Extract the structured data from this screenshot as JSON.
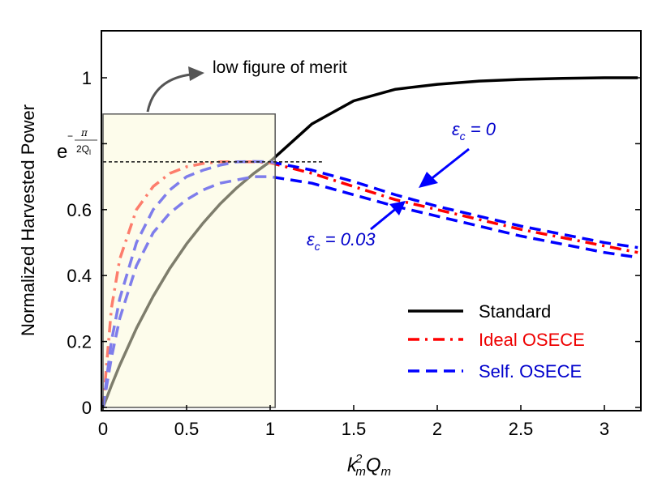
{
  "chart_data": {
    "type": "line",
    "xlabel": {
      "k": "k",
      "k_sub": "m",
      "k_sup": "2",
      "Q": "Q",
      "Q_sub": "m"
    },
    "ylabel": "Normalized Harvested Power",
    "xlim": [
      0,
      3.2
    ],
    "ylim": [
      0,
      1.15
    ],
    "x_ticks": [
      "0",
      "0.5",
      "1",
      "1.5",
      "2",
      "2.5",
      "3"
    ],
    "x_tick_values": [
      0,
      0.5,
      1,
      1.5,
      2,
      2.5,
      3
    ],
    "y_ticks": [
      "0",
      "0.2",
      "0.4",
      "0.6",
      "1"
    ],
    "y_tick_values": [
      0,
      0.2,
      0.4,
      0.6,
      1
    ],
    "special_y_tick": {
      "value": 0.745,
      "base": "e",
      "sign": "−",
      "num": "π",
      "den": "2Q",
      "den_sub": "l"
    },
    "x": [
      0,
      0.05,
      0.1,
      0.2,
      0.3,
      0.4,
      0.5,
      0.6,
      0.7,
      0.8,
      0.9,
      1,
      1.25,
      1.5,
      1.75,
      2,
      2.25,
      2.5,
      2.75,
      3,
      3.2
    ],
    "series": [
      {
        "name": "Standard",
        "color": "#000000",
        "style": "solid",
        "values": [
          0,
          0.066,
          0.128,
          0.24,
          0.337,
          0.422,
          0.496,
          0.56,
          0.617,
          0.666,
          0.709,
          0.746,
          0.86,
          0.93,
          0.965,
          0.98,
          0.99,
          0.995,
          0.998,
          1.0,
          1.0
        ]
      },
      {
        "name": "Ideal OSECE",
        "color": "#ff0000",
        "style": "dashdot",
        "values": [
          0,
          0.3,
          0.45,
          0.6,
          0.67,
          0.71,
          0.73,
          0.74,
          0.745,
          0.745,
          0.745,
          0.742,
          0.71,
          0.67,
          0.63,
          0.6,
          0.57,
          0.54,
          0.515,
          0.49,
          0.47
        ]
      },
      {
        "name": "Self. OSECE",
        "color": "#0000ff",
        "style": "dashed",
        "values": [
          0,
          0.2,
          0.33,
          0.5,
          0.6,
          0.66,
          0.7,
          0.72,
          0.735,
          0.745,
          0.746,
          0.745,
          0.72,
          0.685,
          0.645,
          0.61,
          0.58,
          0.55,
          0.525,
          0.5,
          0.485
        ]
      },
      {
        "color": "#0000ff",
        "style": "dashed",
        "values": [
          0,
          0.15,
          0.27,
          0.43,
          0.53,
          0.59,
          0.63,
          0.66,
          0.68,
          0.69,
          0.7,
          0.7,
          0.68,
          0.645,
          0.61,
          0.58,
          0.55,
          0.52,
          0.495,
          0.47,
          0.455
        ]
      }
    ],
    "legend": {
      "placement": "bottom-right",
      "entries": [
        "Standard",
        "Ideal OSECE",
        "Self. OSECE"
      ]
    },
    "annotations": {
      "low_merit": "low figure of merit",
      "eps0": {
        "sym": "ε",
        "sub": "c",
        "rest": " = 0"
      },
      "eps003": {
        "sym": "ε",
        "sub": "c",
        "rest": " = 0.03"
      }
    },
    "highlight_box": {
      "x": [
        0,
        1.03
      ],
      "y": [
        0,
        0.89
      ],
      "color": "#fbf9d8"
    },
    "reference_line": {
      "y": 0.745,
      "x": [
        0,
        1.31
      ]
    },
    "grid": false
  }
}
